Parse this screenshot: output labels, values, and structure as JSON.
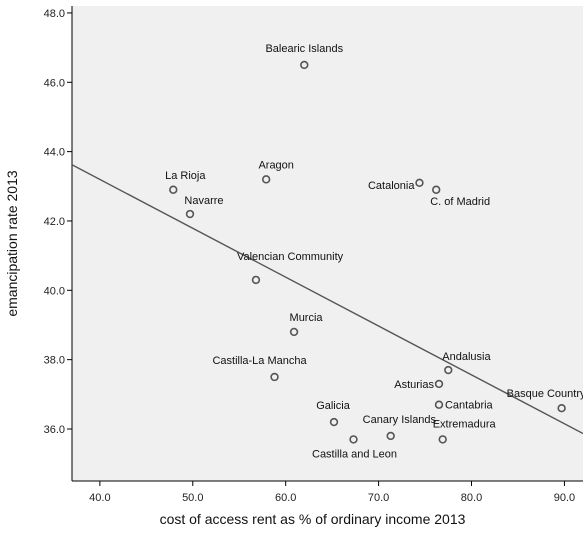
{
  "chart_data": {
    "type": "scatter",
    "xlabel": "cost of access rent as % of ordinary income 2013",
    "ylabel": "emancipation rate 2013",
    "xlim": [
      37,
      92
    ],
    "ylim": [
      34.5,
      48.2
    ],
    "x_ticks": [
      "40.0",
      "50.0",
      "60.0",
      "70.0",
      "80.0",
      "90.0"
    ],
    "y_ticks": [
      "36.0",
      "38.0",
      "40.0",
      "42.0",
      "44.0",
      "46.0",
      "48.0"
    ],
    "grid": false,
    "marker_color": "#555555",
    "line_color": "#555555",
    "background_color": "#f0f0f0",
    "points": [
      {
        "label": "Balearic Islands",
        "x": 62.0,
        "y": 46.5
      },
      {
        "label": "Aragon",
        "x": 57.9,
        "y": 43.2
      },
      {
        "label": "La Rioja",
        "x": 47.9,
        "y": 42.9
      },
      {
        "label": "Navarre",
        "x": 49.7,
        "y": 42.2
      },
      {
        "label": "Catalonia",
        "x": 74.4,
        "y": 43.1
      },
      {
        "label": "C. of Madrid",
        "x": 76.2,
        "y": 42.9
      },
      {
        "label": "Valencian Community",
        "x": 56.8,
        "y": 40.3
      },
      {
        "label": "Murcia",
        "x": 60.9,
        "y": 38.8
      },
      {
        "label": "Castilla-La Mancha",
        "x": 58.8,
        "y": 37.5
      },
      {
        "label": "Andalusia",
        "x": 77.5,
        "y": 37.7
      },
      {
        "label": "Asturias",
        "x": 76.5,
        "y": 37.3
      },
      {
        "label": "Cantabria",
        "x": 76.5,
        "y": 36.7
      },
      {
        "label": "Basque Country",
        "x": 89.7,
        "y": 36.6
      },
      {
        "label": "Galicia",
        "x": 65.2,
        "y": 36.2
      },
      {
        "label": "Canary Islands",
        "x": 71.3,
        "y": 35.8
      },
      {
        "label": "Extremadura",
        "x": 76.9,
        "y": 35.7
      },
      {
        "label": "Castilla and Leon",
        "x": 67.3,
        "y": 35.7
      }
    ],
    "fit_line": {
      "x": [
        37,
        92
      ],
      "y": [
        43.62,
        35.87
      ]
    }
  }
}
